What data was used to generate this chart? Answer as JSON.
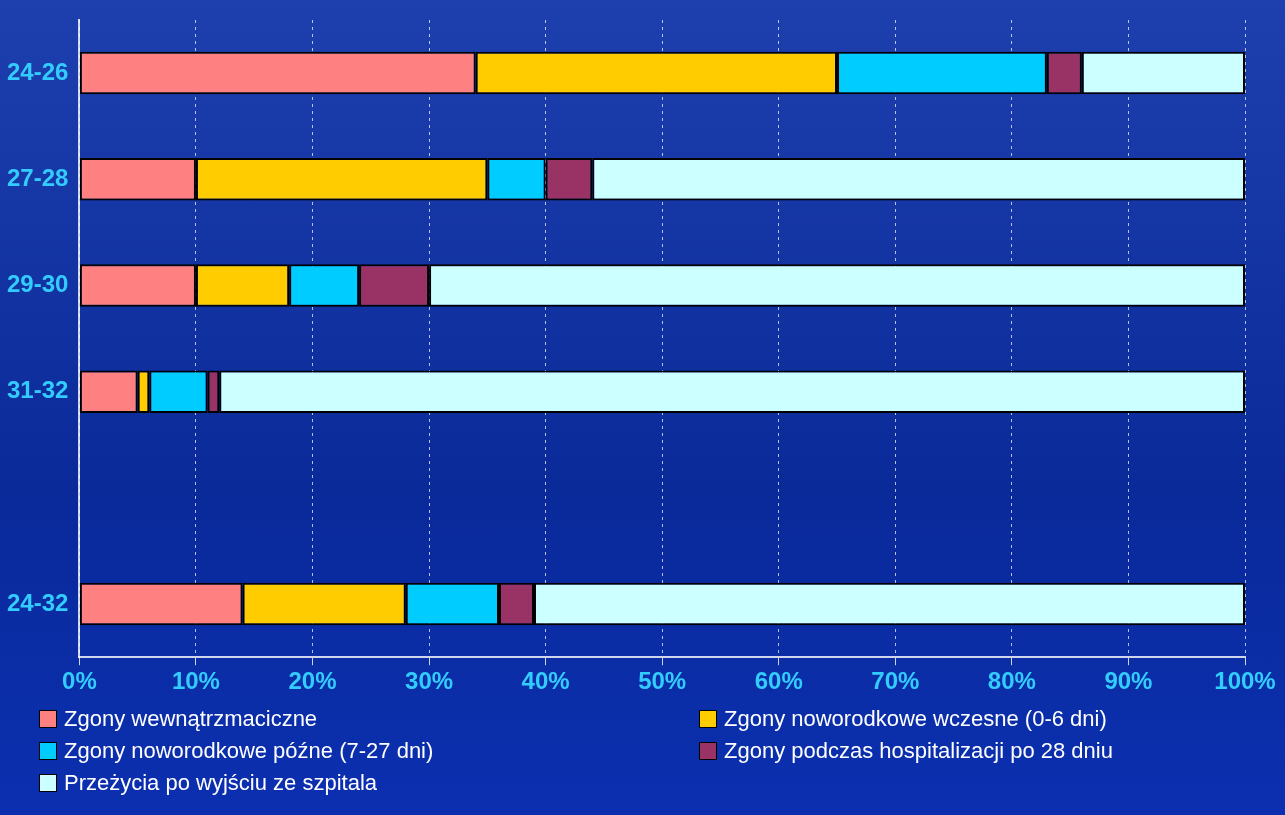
{
  "chart_data": {
    "type": "bar",
    "orientation": "horizontal",
    "stacked": true,
    "categories": [
      "24-26",
      "27-28",
      "29-30",
      "31-32",
      null,
      "24-32"
    ],
    "series": [
      {
        "name": "Zgony wewnątrzmaciczne",
        "color": "#ff8080",
        "values": [
          34,
          10,
          10,
          5,
          null,
          14
        ]
      },
      {
        "name": "Zgony noworodkowe wczesne (0-6 dni)",
        "color": "#ffcc00",
        "values": [
          31,
          25,
          8,
          1,
          null,
          14
        ]
      },
      {
        "name": "Zgony noworodkowe późne (7-27 dni)",
        "color": "#00ccff",
        "values": [
          18,
          5,
          6,
          5,
          null,
          8
        ]
      },
      {
        "name": "Zgony podczas hospitalizacji po 28 dniu",
        "color": "#993366",
        "values": [
          3,
          4,
          6,
          1,
          null,
          3
        ]
      },
      {
        "name": "Przeżycia po wyjściu ze szpitala",
        "color": "#ccffff",
        "values": [
          14,
          56,
          70,
          88,
          null,
          61
        ]
      }
    ],
    "xlim": [
      0,
      100
    ],
    "xticks": [
      {
        "value": 0,
        "label": "0%"
      },
      {
        "value": 10,
        "label": "10%"
      },
      {
        "value": 20,
        "label": "20%"
      },
      {
        "value": 30,
        "label": "30%"
      },
      {
        "value": 40,
        "label": "40%"
      },
      {
        "value": 50,
        "label": "50%"
      },
      {
        "value": 60,
        "label": "60%"
      },
      {
        "value": 70,
        "label": "70%"
      },
      {
        "value": 80,
        "label": "80%"
      },
      {
        "value": 90,
        "label": "90%"
      },
      {
        "value": 100,
        "label": "100%"
      }
    ],
    "grid": "x",
    "legend": "bottom"
  }
}
